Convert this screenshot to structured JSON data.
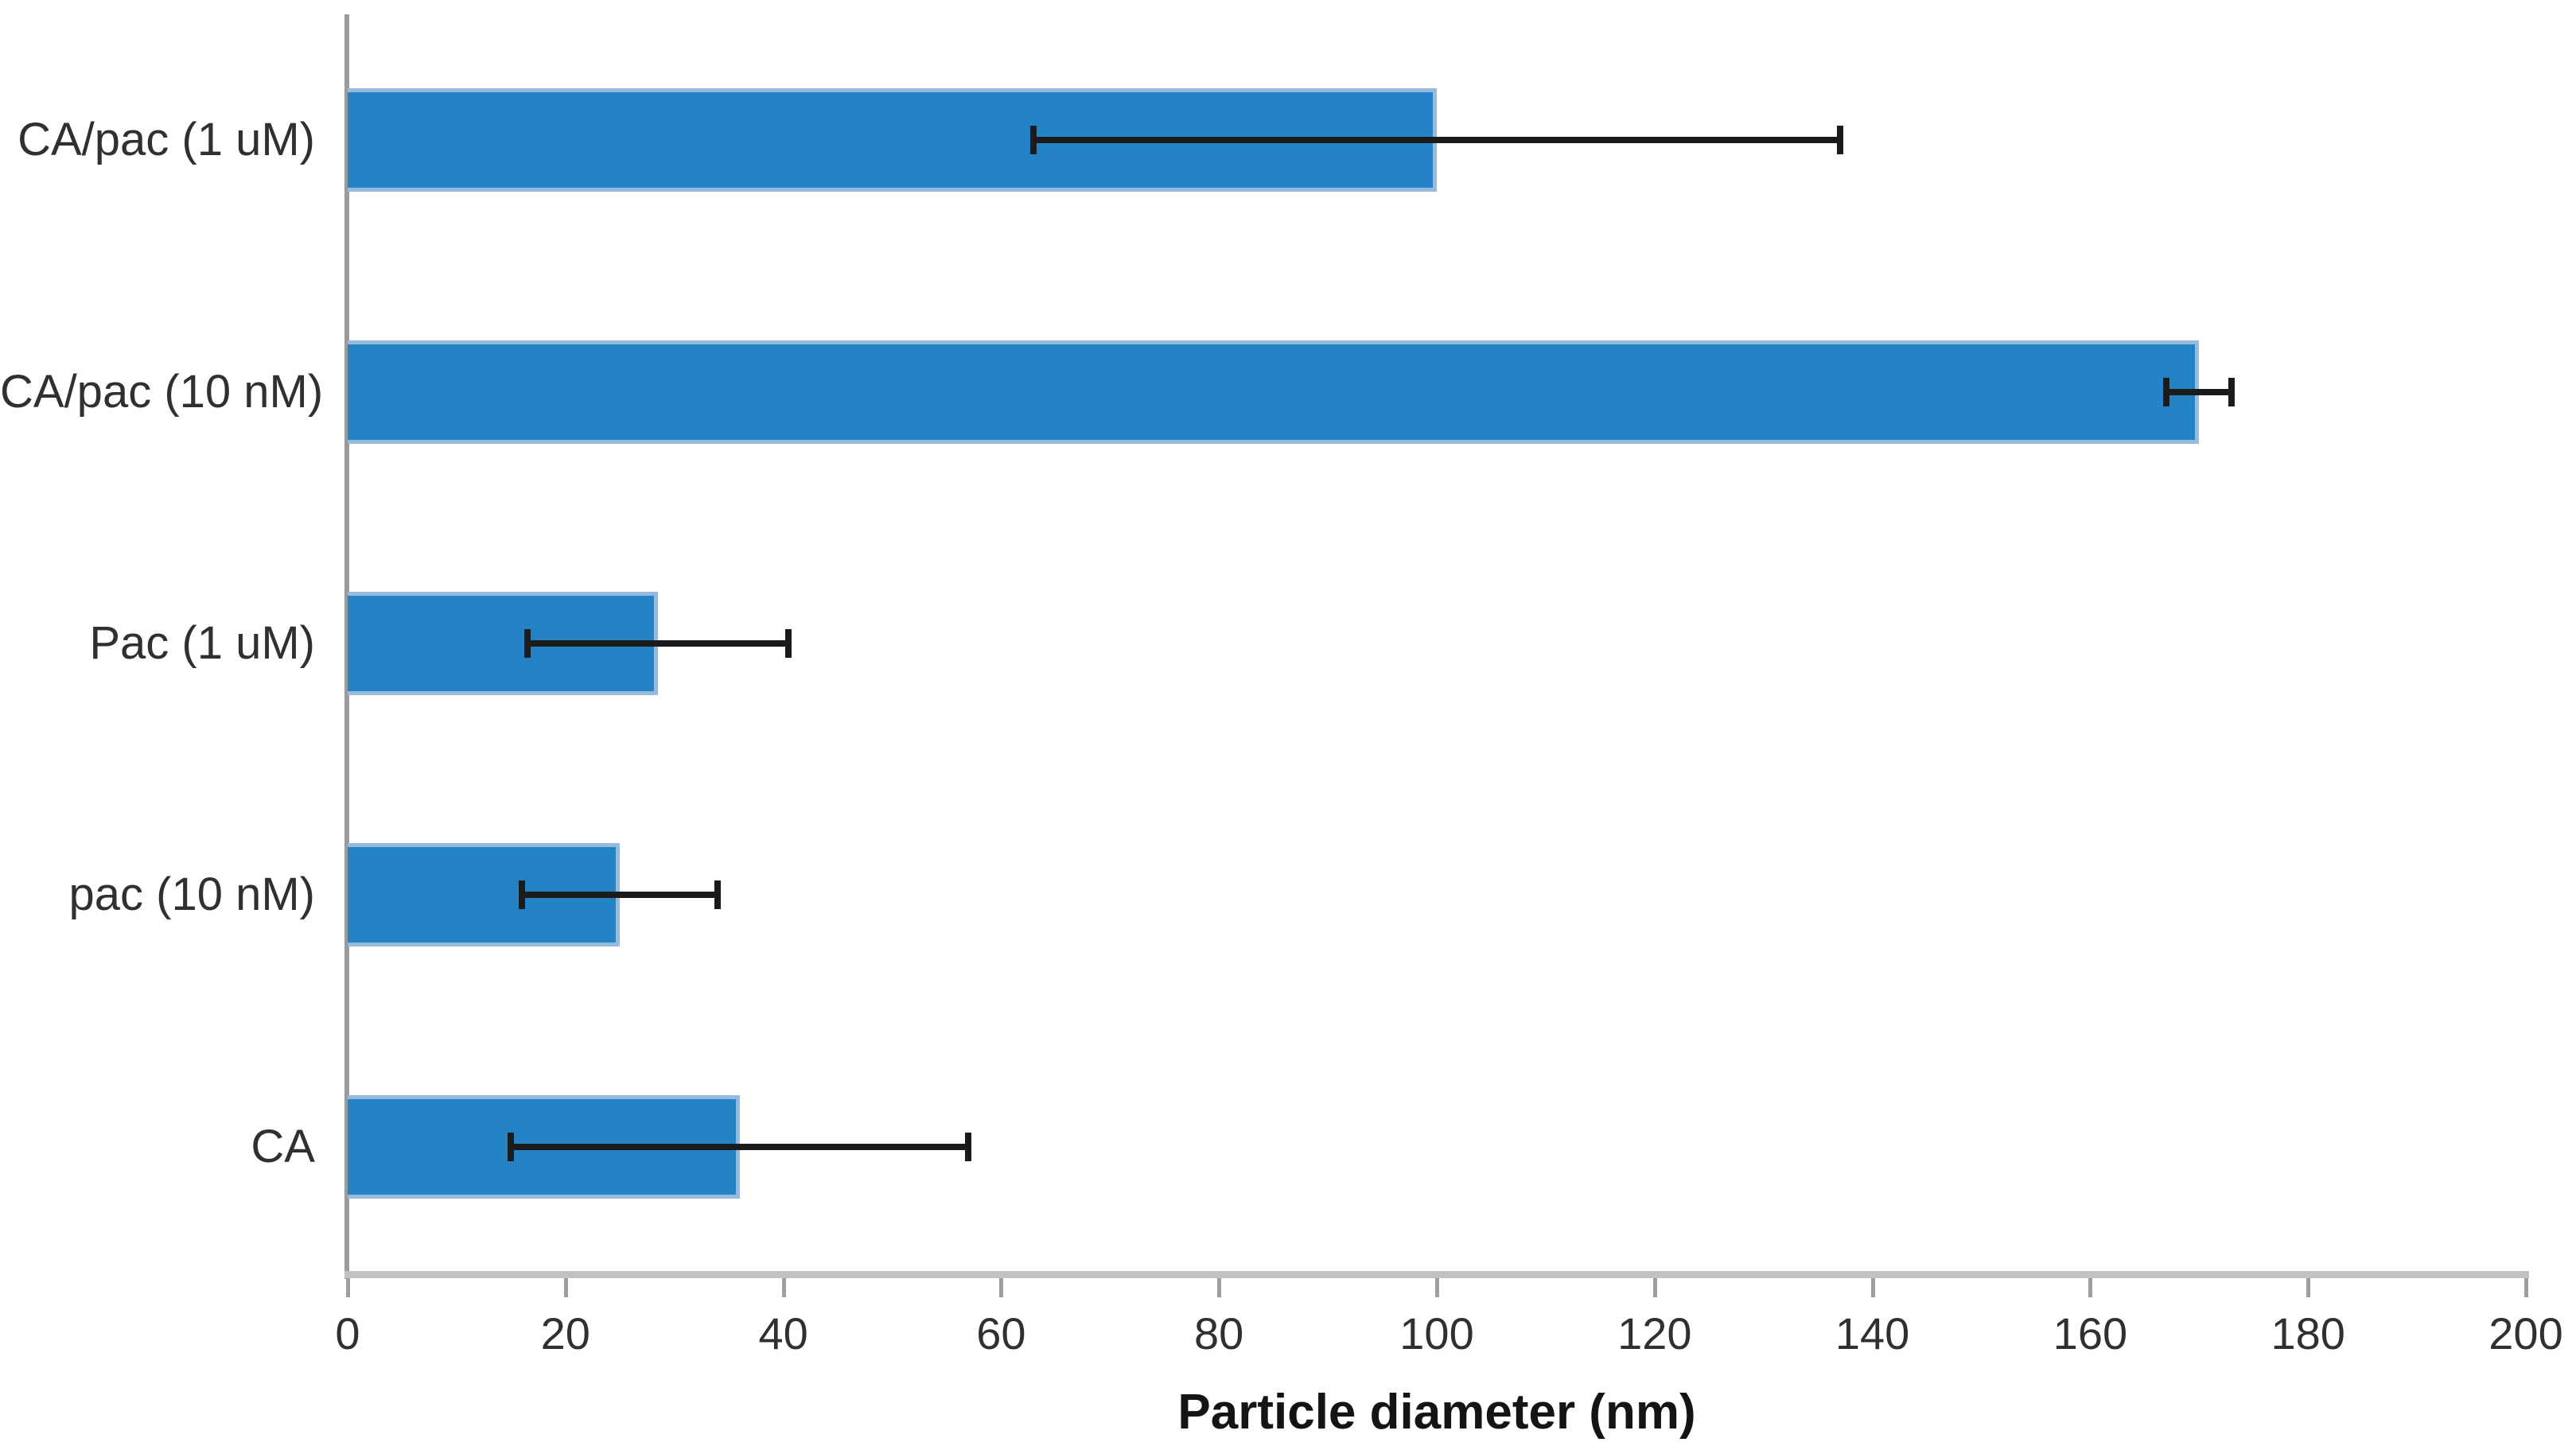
{
  "chart_data": {
    "type": "bar",
    "orientation": "horizontal",
    "title": "",
    "xlabel": "Particle diameter (nm)",
    "ylabel": "",
    "categories": [
      "CA/pac (1 uM)",
      "CA/pac (10 nM)",
      "Pac (1 uM)",
      "pac (10 nM)",
      "CA"
    ],
    "values": [
      100,
      170,
      28.5,
      25,
      36
    ],
    "error_bars": [
      37,
      3,
      12,
      9,
      21
    ],
    "xlim": [
      0,
      200
    ],
    "xticks": [
      0,
      20,
      40,
      60,
      80,
      100,
      120,
      140,
      160,
      180,
      200
    ],
    "grid": false,
    "legend": false,
    "colors": {
      "bar_fill": "#2483c4",
      "bar_border": "#96badd",
      "error_bar": "#1b1b1b",
      "x_axis_line": "#c1c1c1",
      "y_axis_line": "#9b9b9b",
      "tick_mark": "#9f9f9f",
      "tick_text": "#303030",
      "title_text": "#141414"
    }
  }
}
